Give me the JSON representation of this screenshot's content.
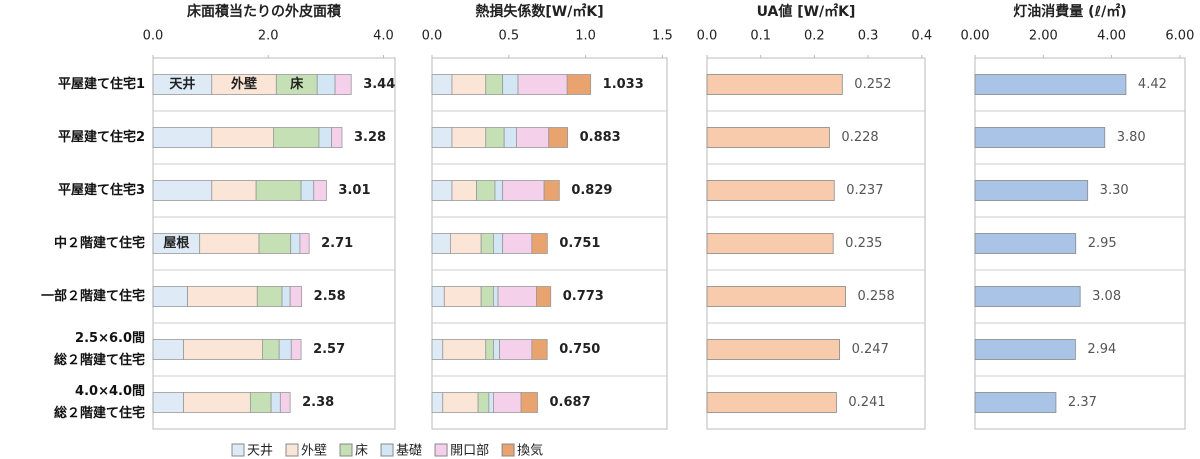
{
  "chart_data": [
    {
      "type": "stacked_barh",
      "title": "床面積当たりの外皮面積",
      "categories": [
        "平屋建て住宅1",
        "平屋建て住宅2",
        "平屋建て住宅3",
        "中２階建て住宅",
        "一部２階建て住宅",
        "2.5×6.0間\n総２階建て住宅",
        "4.0×4.0間\n総２階建て住宅"
      ],
      "xlim": [
        0,
        4.2
      ],
      "xticks": [
        {
          "value": 0,
          "label": "0.0"
        },
        {
          "value": 2,
          "label": "2.0"
        },
        {
          "value": 4,
          "label": "4.0"
        }
      ],
      "series": [
        {
          "name": "天井",
          "color": "#deebf7",
          "values": [
            1.02,
            1.02,
            1.02,
            0.81,
            0.6,
            0.53,
            0.53
          ]
        },
        {
          "name": "外壁",
          "color": "#fbe5d6",
          "values": [
            1.12,
            1.07,
            0.77,
            1.03,
            1.21,
            1.37,
            1.16
          ]
        },
        {
          "name": "床",
          "color": "#c5e0b4",
          "values": [
            0.71,
            0.79,
            0.78,
            0.55,
            0.43,
            0.29,
            0.36
          ]
        },
        {
          "name": "基礎",
          "color": "#d2e6f5",
          "values": [
            0.31,
            0.22,
            0.22,
            0.16,
            0.14,
            0.21,
            0.16
          ]
        },
        {
          "name": "開口部",
          "color": "#f4d0ea",
          "values": [
            0.28,
            0.18,
            0.22,
            0.16,
            0.2,
            0.17,
            0.17
          ]
        }
      ],
      "totals": [
        3.44,
        3.28,
        3.01,
        2.71,
        2.58,
        2.57,
        2.38
      ],
      "total_labels": [
        "3.44",
        "3.28",
        "3.01",
        "2.71",
        "2.58",
        "2.57",
        "2.38"
      ],
      "annotations": [
        "天井",
        "外壁",
        "床",
        "屋根"
      ]
    },
    {
      "type": "stacked_barh",
      "title": "熱損失係数[W/㎡K]",
      "xlim": [
        0,
        1.53
      ],
      "xticks": [
        {
          "value": 0,
          "label": "0.0"
        },
        0.5,
        {
          "value": 1,
          "label": "1.0"
        },
        1.5
      ],
      "series": [
        {
          "name": "天井",
          "color": "#deebf7",
          "values": [
            0.13,
            0.13,
            0.13,
            0.12,
            0.08,
            0.07,
            0.07
          ]
        },
        {
          "name": "外壁",
          "color": "#fbe5d6",
          "values": [
            0.22,
            0.22,
            0.16,
            0.2,
            0.24,
            0.28,
            0.23
          ]
        },
        {
          "name": "床",
          "color": "#c5e0b4",
          "values": [
            0.11,
            0.12,
            0.12,
            0.08,
            0.08,
            0.05,
            0.07
          ]
        },
        {
          "name": "基礎",
          "color": "#d2e6f5",
          "values": [
            0.1,
            0.08,
            0.05,
            0.06,
            0.03,
            0.04,
            0.03
          ]
        },
        {
          "name": "開口部",
          "color": "#f4d0ea",
          "values": [
            0.32,
            0.21,
            0.27,
            0.19,
            0.25,
            0.21,
            0.18
          ]
        },
        {
          "name": "換気",
          "color": "#e9a36f",
          "values": [
            0.153,
            0.123,
            0.099,
            0.101,
            0.093,
            0.1,
            0.107
          ]
        }
      ],
      "totals": [
        1.033,
        0.883,
        0.829,
        0.751,
        0.773,
        0.75,
        0.687
      ],
      "total_labels": [
        "1.033",
        "0.883",
        "0.829",
        "0.751",
        "0.773",
        "0.750",
        "0.687"
      ]
    },
    {
      "type": "barh",
      "title": "UA値 [W/㎡K]",
      "xlim": [
        0,
        0.406
      ],
      "xticks": [
        {
          "value": 0,
          "label": "0.0"
        },
        0.1,
        0.2,
        0.3,
        0.4
      ],
      "color": "#f8cbad",
      "values": [
        0.252,
        0.228,
        0.237,
        0.235,
        0.258,
        0.247,
        0.241
      ],
      "value_labels": [
        "0.252",
        "0.228",
        "0.237",
        "0.235",
        "0.258",
        "0.247",
        "0.241"
      ]
    },
    {
      "type": "barh",
      "title": "灯油消費量 (ℓ/㎡)",
      "xlim": [
        0,
        6.15
      ],
      "xticks": [
        {
          "value": 0,
          "label": "0.00"
        },
        {
          "value": 2,
          "label": "2.00"
        },
        {
          "value": 4,
          "label": "4.00"
        },
        {
          "value": 6,
          "label": "6.00"
        }
      ],
      "color": "#a9c4e6",
      "values": [
        4.42,
        3.8,
        3.3,
        2.95,
        3.08,
        2.94,
        2.37
      ],
      "value_labels": [
        "4.42",
        "3.80",
        "3.30",
        "2.95",
        "3.08",
        "2.94",
        "2.37"
      ]
    }
  ]
}
